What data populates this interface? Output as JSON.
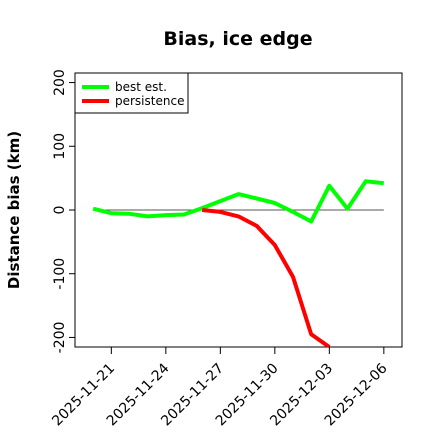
{
  "chart_data": {
    "type": "line",
    "title": "Bias, ice edge",
    "xlabel": "",
    "ylabel": "Distance bias (km)",
    "x_dates": [
      "2025-11-20",
      "2025-11-21",
      "2025-11-22",
      "2025-11-23",
      "2025-11-24",
      "2025-11-25",
      "2025-11-26",
      "2025-11-27",
      "2025-11-28",
      "2025-11-29",
      "2025-11-30",
      "2025-12-01",
      "2025-12-02",
      "2025-12-03",
      "2025-12-04",
      "2025-12-05",
      "2025-12-06"
    ],
    "xlim": [
      "2025-11-19",
      "2025-12-07"
    ],
    "ylim": [
      -215,
      215
    ],
    "x_ticks": [
      "2025-11-21",
      "2025-11-24",
      "2025-11-27",
      "2025-11-30",
      "2025-12-03",
      "2025-12-06"
    ],
    "y_ticks": [
      -200,
      -100,
      0,
      100,
      200
    ],
    "y_tick_labels": [
      "-200",
      "-100",
      "0",
      "100",
      "200"
    ],
    "zero_line": {
      "y": 0,
      "from": "2025-11-20",
      "to": "2025-12-06"
    },
    "legend_position": "top-left",
    "series": [
      {
        "name": "best est.",
        "color": "#00ff00",
        "x": [
          "2025-11-20",
          "2025-11-21",
          "2025-11-22",
          "2025-11-23",
          "2025-11-24",
          "2025-11-25",
          "2025-11-26",
          "2025-11-27",
          "2025-11-28",
          "2025-11-29",
          "2025-11-30",
          "2025-12-01",
          "2025-12-02",
          "2025-12-03",
          "2025-12-04",
          "2025-12-05",
          "2025-12-06"
        ],
        "values": [
          2,
          -5,
          -6,
          -10,
          -8,
          -7,
          3,
          14,
          25,
          18,
          11,
          -3,
          -18,
          38,
          2,
          45,
          42
        ]
      },
      {
        "name": "persistence",
        "color": "#ff0000",
        "x": [
          "2025-11-26",
          "2025-11-27",
          "2025-11-28",
          "2025-11-29",
          "2025-11-30",
          "2025-12-01",
          "2025-12-02",
          "2025-12-03"
        ],
        "values": [
          0,
          -3,
          -10,
          -25,
          -55,
          -105,
          -195,
          -215
        ]
      }
    ]
  }
}
